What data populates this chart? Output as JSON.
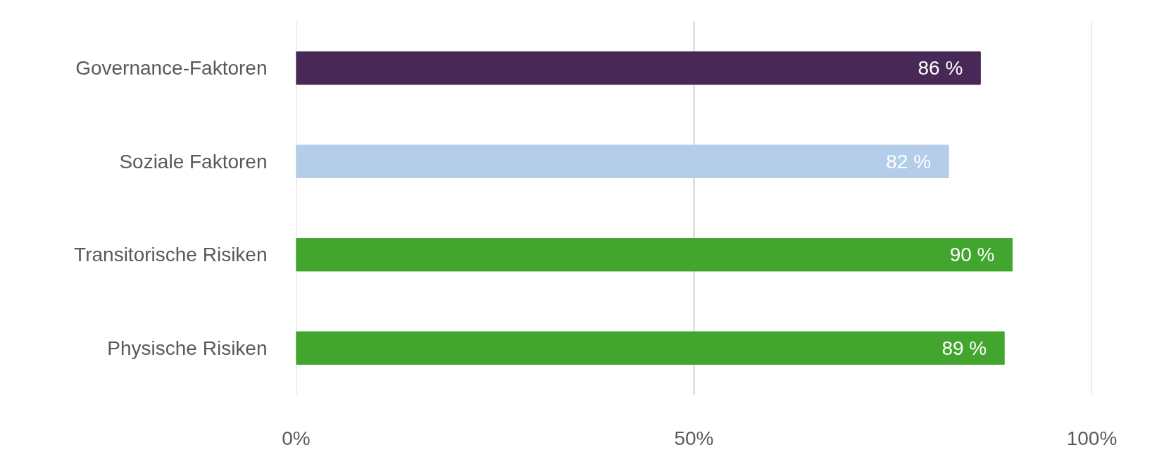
{
  "chart_data": {
    "type": "bar",
    "orientation": "horizontal",
    "categories": [
      "Governance-Faktoren",
      "Soziale Faktoren",
      "Transitorische Risiken",
      "Physische Risiken"
    ],
    "values": [
      86,
      82,
      90,
      89
    ],
    "colors": [
      "#472856",
      "#b4cde8",
      "#42a52e",
      "#42a52e"
    ],
    "value_labels": [
      "86 %",
      "82 %",
      "90 %",
      "89 %"
    ],
    "xlim": [
      0,
      100
    ],
    "xticks": [
      {
        "value": 0,
        "label": "0%"
      },
      {
        "value": 50,
        "label": "50%"
      },
      {
        "value": 100,
        "label": "100%"
      }
    ],
    "grid": "x"
  }
}
